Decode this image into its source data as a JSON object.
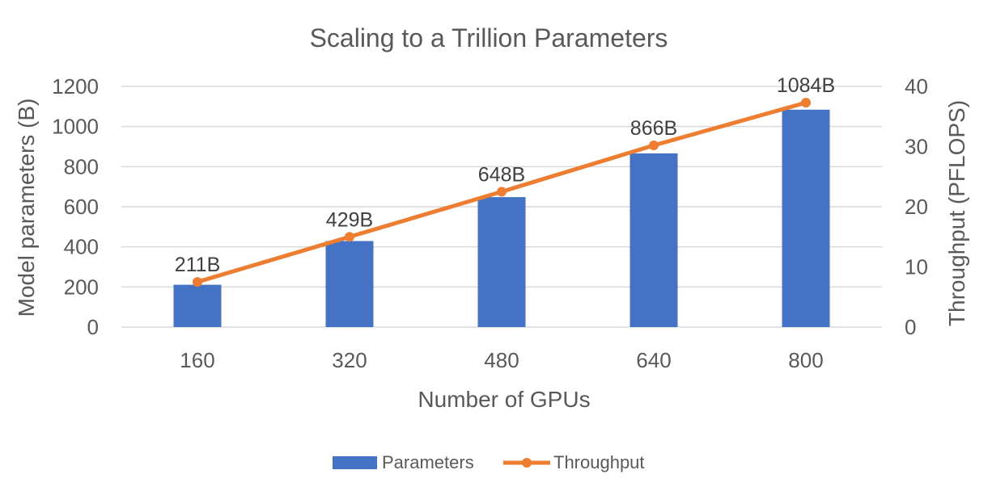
{
  "chart_data": {
    "type": "bar",
    "title": "Scaling to a Trillion Parameters",
    "xlabel": "Number of GPUs",
    "ylabel": "Model parameters (B)",
    "y2label": "Throughput (PFLOPS)",
    "categories": [
      "160",
      "320",
      "480",
      "640",
      "800"
    ],
    "ylim": [
      0,
      1200
    ],
    "y2lim": [
      0,
      40
    ],
    "yticks": [
      "0",
      "200",
      "400",
      "600",
      "800",
      "1000",
      "1200"
    ],
    "y2ticks": [
      "0",
      "10",
      "20",
      "30",
      "40"
    ],
    "grid": true,
    "legend_position": "bottom",
    "series": [
      {
        "name": "Parameters",
        "type": "bar",
        "axis": "left",
        "color": "#4472c4",
        "values": [
          211,
          429,
          648,
          866,
          1084
        ],
        "labels": [
          "211B",
          "429B",
          "648B",
          "866B",
          "1084B"
        ]
      },
      {
        "name": "Throughput",
        "type": "line",
        "axis": "right",
        "color": "#ed7d31",
        "values": [
          7.5,
          15.0,
          22.5,
          30.2,
          37.3
        ]
      }
    ]
  }
}
